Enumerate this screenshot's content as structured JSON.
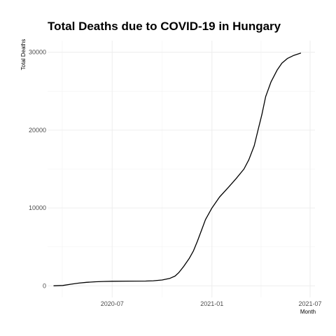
{
  "chart_data": {
    "type": "line",
    "title": "Total Deaths due to COVID-19 in Hungary",
    "xlabel": "Month",
    "ylabel": "Total Deaths",
    "x_ticks": [
      "2020-07",
      "2021-01",
      "2021-07"
    ],
    "y_ticks": [
      "0",
      "10000",
      "20000",
      "30000"
    ],
    "xlim": [
      "2020-03-04",
      "2021-07-10"
    ],
    "ylim": [
      -1500,
      31500
    ],
    "grid": true,
    "legend": "none",
    "line_color": "#000000",
    "points": [
      {
        "x": "2020-03-15",
        "y": 0
      },
      {
        "x": "2020-04-01",
        "y": 50
      },
      {
        "x": "2020-04-15",
        "y": 200
      },
      {
        "x": "2020-05-01",
        "y": 350
      },
      {
        "x": "2020-05-15",
        "y": 450
      },
      {
        "x": "2020-06-01",
        "y": 520
      },
      {
        "x": "2020-06-15",
        "y": 560
      },
      {
        "x": "2020-07-01",
        "y": 590
      },
      {
        "x": "2020-08-01",
        "y": 600
      },
      {
        "x": "2020-09-01",
        "y": 610
      },
      {
        "x": "2020-09-15",
        "y": 650
      },
      {
        "x": "2020-10-01",
        "y": 750
      },
      {
        "x": "2020-10-15",
        "y": 950
      },
      {
        "x": "2020-10-25",
        "y": 1250
      },
      {
        "x": "2020-11-01",
        "y": 1700
      },
      {
        "x": "2020-11-10",
        "y": 2500
      },
      {
        "x": "2020-11-20",
        "y": 3500
      },
      {
        "x": "2020-11-28",
        "y": 4500
      },
      {
        "x": "2020-12-05",
        "y": 5700
      },
      {
        "x": "2020-12-12",
        "y": 7000
      },
      {
        "x": "2020-12-20",
        "y": 8500
      },
      {
        "x": "2021-01-01",
        "y": 10000
      },
      {
        "x": "2021-01-15",
        "y": 11400
      },
      {
        "x": "2021-02-01",
        "y": 12700
      },
      {
        "x": "2021-02-15",
        "y": 13800
      },
      {
        "x": "2021-03-01",
        "y": 15000
      },
      {
        "x": "2021-03-10",
        "y": 16200
      },
      {
        "x": "2021-03-20",
        "y": 18000
      },
      {
        "x": "2021-03-27",
        "y": 20000
      },
      {
        "x": "2021-04-03",
        "y": 22000
      },
      {
        "x": "2021-04-10",
        "y": 24300
      },
      {
        "x": "2021-04-20",
        "y": 26200
      },
      {
        "x": "2021-05-01",
        "y": 27700
      },
      {
        "x": "2021-05-10",
        "y": 28600
      },
      {
        "x": "2021-05-20",
        "y": 29200
      },
      {
        "x": "2021-06-01",
        "y": 29600
      },
      {
        "x": "2021-06-14",
        "y": 29900
      }
    ]
  }
}
